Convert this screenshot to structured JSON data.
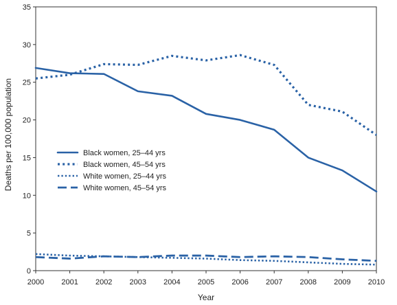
{
  "chart_data": {
    "type": "line",
    "xlabel": "Year",
    "ylabel": "Deaths per 100,000 population",
    "xlim": [
      2000,
      2010
    ],
    "ylim": [
      0,
      35
    ],
    "x_ticks": [
      2000,
      2001,
      2002,
      2003,
      2004,
      2005,
      2006,
      2007,
      2008,
      2009,
      2010
    ],
    "y_ticks": [
      0,
      5,
      10,
      15,
      20,
      25,
      30,
      35
    ],
    "grid": false,
    "legend_position": "middle-left",
    "line_color": "#2a62a6",
    "x": [
      2000,
      2001,
      2002,
      2003,
      2004,
      2005,
      2006,
      2007,
      2008,
      2009,
      2010
    ],
    "series": [
      {
        "name": "Black women, 25–44 yrs",
        "style": "solid",
        "values": [
          26.9,
          26.2,
          26.1,
          23.8,
          23.2,
          20.8,
          20.0,
          18.7,
          15.0,
          13.3,
          10.5
        ]
      },
      {
        "name": "Black women, 45–54 yrs",
        "style": "dense-dotted",
        "values": [
          25.5,
          26.0,
          27.4,
          27.3,
          28.5,
          27.9,
          28.6,
          27.3,
          22.0,
          21.1,
          18.0
        ]
      },
      {
        "name": "White women, 25–44 yrs",
        "style": "dotted",
        "values": [
          2.2,
          2.0,
          1.9,
          1.8,
          1.7,
          1.6,
          1.4,
          1.3,
          1.1,
          0.9,
          0.8
        ]
      },
      {
        "name": "White women, 45–54 yrs",
        "style": "dashed",
        "values": [
          1.8,
          1.6,
          1.9,
          1.8,
          2.0,
          2.0,
          1.8,
          1.9,
          1.8,
          1.5,
          1.3
        ]
      }
    ]
  }
}
